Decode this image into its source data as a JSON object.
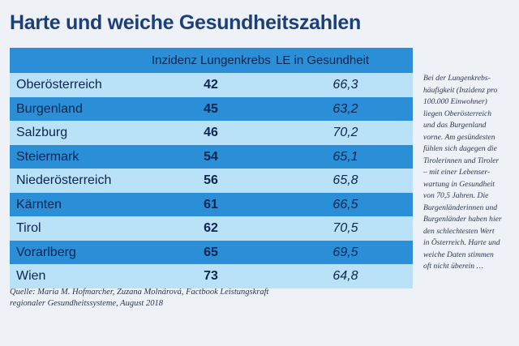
{
  "title": "Harte und weiche Gesundheitszahlen",
  "table": {
    "headers": [
      "",
      "Inzidenz Lungenkrebs",
      "LE in Gesundheit"
    ],
    "rows": [
      {
        "region": "Oberösterreich",
        "incidence": "42",
        "le": "66,3"
      },
      {
        "region": "Burgenland",
        "incidence": "45",
        "le": "63,2"
      },
      {
        "region": "Salzburg",
        "incidence": "46",
        "le": "70,2"
      },
      {
        "region": "Steiermark",
        "incidence": "54",
        "le": "65,1"
      },
      {
        "region": "Niederösterreich",
        "incidence": "56",
        "le": "65,8"
      },
      {
        "region": "Kärnten",
        "incidence": "61",
        "le": "66,5"
      },
      {
        "region": "Tirol",
        "incidence": "62",
        "le": "70,5"
      },
      {
        "region": "Vorarlberg",
        "incidence": "65",
        "le": "69,5"
      },
      {
        "region": "Wien",
        "incidence": "73",
        "le": "64,8"
      }
    ]
  },
  "source_lines": [
    "Quelle: Maria M. Hofmarcher, Zuzana Molnárová, Factbook Leistungskraft",
    "regionaler Gesundheitssysteme, August 2018"
  ],
  "sidebar_lines": [
    "Bei der Lungenkrebs-",
    "häufigkeit (Inzidenz pro",
    "100.000 Einwohner)",
    "liegen Oberösterreich",
    "und das Burgenland",
    "vorne. Am gesündesten",
    "fühlen sich dagegen die",
    "Tirolerinnen und Tiroler",
    "– mit einer Lebenser-",
    "wartung in Gesundheit",
    "von 70,5 Jahren. Die",
    "Burgenländerinnen und",
    "Burgenländer haben hier",
    "den schlechtesten Wert",
    "in Österreich. Harte und",
    "weiche Daten stimmen",
    "oft nicht überein …"
  ],
  "colors": {
    "title": "#1b3f7a",
    "row_dark": "#2a8fd6",
    "row_light": "#b9e1f7",
    "background": "#eef2f7"
  }
}
